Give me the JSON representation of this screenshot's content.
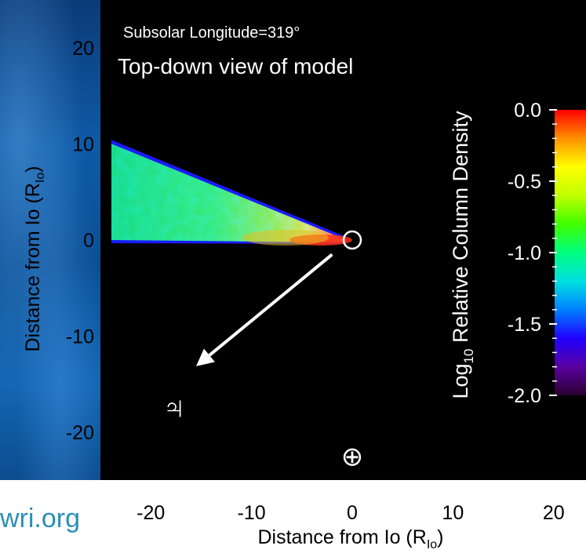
{
  "website_fragment": "wri.org",
  "chart_data": {
    "type": "heatmap",
    "subtitle": "Subsolar Longitude=319°",
    "title": "Top-down view of model",
    "xlabel": "Distance from Io (R",
    "xlabel_sub": "Io",
    "xlabel_close": ")",
    "ylabel": "Distance from Io (R",
    "ylabel_sub": "Io",
    "ylabel_close": ")",
    "xlim": [
      -25,
      25
    ],
    "ylim": [
      -25,
      25
    ],
    "x_ticks": [
      {
        "value": -20,
        "label": "-20"
      },
      {
        "value": -10,
        "label": "-10"
      },
      {
        "value": 0,
        "label": "0"
      },
      {
        "value": 10,
        "label": "10"
      },
      {
        "value": 20,
        "label": "20"
      }
    ],
    "y_ticks": [
      {
        "value": 20,
        "label": "20"
      },
      {
        "value": 10,
        "label": "10"
      },
      {
        "value": 0,
        "label": "0"
      },
      {
        "value": -10,
        "label": "-10"
      },
      {
        "value": -20,
        "label": "-20"
      }
    ],
    "colorbar": {
      "label_prefix": "Log",
      "label_sub": "10",
      "label_rest": " Relative Column Density",
      "range": [
        -2.0,
        0.0
      ],
      "ticks": [
        {
          "value": 0.0,
          "label": "0.0"
        },
        {
          "value": -0.5,
          "label": "-0.5"
        },
        {
          "value": -1.0,
          "label": "-1.0"
        },
        {
          "value": -1.5,
          "label": "-1.5"
        },
        {
          "value": -2.0,
          "label": "-2.0"
        }
      ],
      "colormap": [
        "#2a0030",
        "#5a00a0",
        "#2000ff",
        "#0080ff",
        "#00e0e0",
        "#00ff80",
        "#40ff00",
        "#c0ff00",
        "#ffff00",
        "#ff9000",
        "#ff0000"
      ]
    },
    "io_position": [
      0,
      0
    ],
    "wedge": {
      "apex": [
        0,
        0
      ],
      "upper_edge_at_left": [
        -25,
        10.5
      ],
      "lower_edge": 0,
      "description_values": {
        "max_log_density": 0.0,
        "typical_log_density": -0.9
      }
    },
    "arrow": {
      "from": [
        -2,
        -2
      ],
      "to": [
        -15.5,
        -13.8
      ],
      "label": "♃"
    },
    "earth_symbol": {
      "position": [
        0,
        -22.5
      ],
      "label": "⊕"
    }
  }
}
